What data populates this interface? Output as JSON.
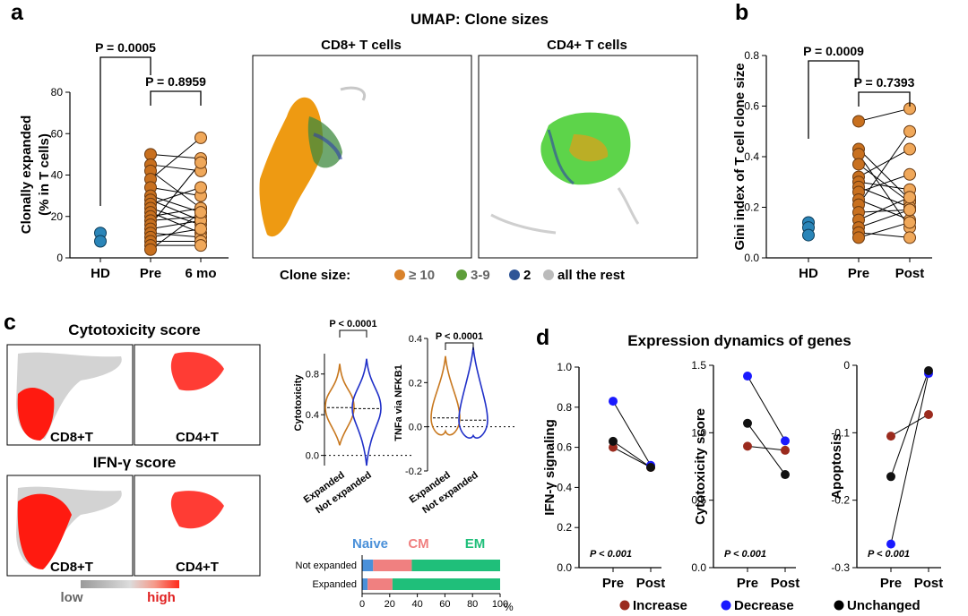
{
  "panels": {
    "a": "a",
    "b": "b",
    "c": "c",
    "d": "d"
  },
  "colors": {
    "expanded10": "#d9822b",
    "clone39": "#5e9e3a",
    "clone2": "#2f5597",
    "rest": "#bbbbbb",
    "hd": "#2a85b8",
    "increase": "#9b2b1e",
    "decrease": "#1a1aff",
    "unchanged": "#000000",
    "naive": "#4a90d9",
    "cm": "#f08080",
    "em": "#1fbf7a"
  },
  "chart_data": [
    {
      "id": "a",
      "type": "scatter",
      "ylabel": "Clonally expanded",
      "ylabel2": "(% in T cells)",
      "categories": [
        "HD",
        "Pre",
        "6 mo"
      ],
      "yticks": [
        "0",
        "20",
        "40",
        "60",
        "80"
      ],
      "ylim": [
        0,
        80
      ],
      "hd": [
        12,
        8
      ],
      "pairs": [
        [
          50,
          48
        ],
        [
          45,
          42
        ],
        [
          42,
          24
        ],
        [
          38,
          58
        ],
        [
          34,
          30
        ],
        [
          30,
          22
        ],
        [
          28,
          18
        ],
        [
          26,
          34
        ],
        [
          24,
          16
        ],
        [
          22,
          12
        ],
        [
          20,
          24
        ],
        [
          18,
          20
        ],
        [
          16,
          46
        ],
        [
          14,
          18
        ],
        [
          12,
          10
        ],
        [
          10,
          14
        ],
        [
          8,
          8
        ],
        [
          6,
          6
        ],
        [
          4,
          22
        ]
      ],
      "pvals": [
        "P = 0.0005",
        "P = 0.8959"
      ]
    },
    {
      "id": "umap",
      "type": "scatter",
      "title": "UMAP: Clone sizes",
      "subtitles": [
        "CD8+ T cells",
        "CD4+ T cells"
      ],
      "legend_title": "Clone size:",
      "legend": [
        "≥ 10",
        "3-9",
        "2",
        "all the rest"
      ]
    },
    {
      "id": "b",
      "type": "scatter",
      "ylabel": "Gini index of T cell clone size",
      "categories": [
        "HD",
        "Pre",
        "Post"
      ],
      "yticks": [
        "0.0",
        "0.2",
        "0.4",
        "0.6",
        "0.8"
      ],
      "ylim": [
        0,
        0.8
      ],
      "hd": [
        0.14,
        0.12,
        0.09
      ],
      "pairs": [
        [
          0.54,
          0.59
        ],
        [
          0.43,
          0.23
        ],
        [
          0.41,
          0.12
        ],
        [
          0.37,
          0.22
        ],
        [
          0.32,
          0.43
        ],
        [
          0.3,
          0.27
        ],
        [
          0.28,
          0.2
        ],
        [
          0.26,
          0.33
        ],
        [
          0.23,
          0.15
        ],
        [
          0.21,
          0.5
        ],
        [
          0.18,
          0.19
        ],
        [
          0.15,
          0.24
        ],
        [
          0.12,
          0.19
        ],
        [
          0.1,
          0.08
        ],
        [
          0.08,
          0.14
        ]
      ],
      "pvals": [
        "P = 0.0009",
        "P = 0.7393"
      ]
    },
    {
      "id": "c-maps",
      "type": "heatmap",
      "titles": [
        "Cytotoxicity score",
        "IFN-γ score"
      ],
      "labels": [
        "CD8+T",
        "CD4+T",
        "CD8+T",
        "CD4+T"
      ],
      "scale": [
        "low",
        "high"
      ]
    },
    {
      "id": "c-violin1",
      "type": "area",
      "ylabel": "Cytotoxicity",
      "yticks": [
        "0.0",
        "0.4",
        "0.8"
      ],
      "ylim": [
        -0.1,
        1.0
      ],
      "categories": [
        "Expanded",
        "Not expanded"
      ],
      "medians": [
        0.47,
        0.46
      ],
      "pval": "P < 0.0001"
    },
    {
      "id": "c-violin2",
      "type": "area",
      "ylabel": "TNFa via NFKB1",
      "yticks": [
        "-0.2",
        "0.0",
        "0.2",
        "0.4"
      ],
      "ylim": [
        -0.2,
        0.4
      ],
      "categories": [
        "Expanded",
        "Not expanded"
      ],
      "medians": [
        0.04,
        0.03
      ],
      "pval": "P < 0.0001"
    },
    {
      "id": "c-bar",
      "type": "bar",
      "categories": [
        "Not expanded",
        "Expanded"
      ],
      "series": [
        {
          "name": "Naive",
          "values": [
            8,
            4
          ]
        },
        {
          "name": "CM",
          "values": [
            28,
            18
          ]
        },
        {
          "name": "EM",
          "values": [
            64,
            78
          ]
        }
      ],
      "xticks": [
        "0",
        "20",
        "40",
        "60",
        "80",
        "100"
      ],
      "unit": "%"
    },
    {
      "id": "d",
      "type": "line",
      "title": "Expression dynamics of genes",
      "legend": [
        "Increase",
        "Decrease",
        "Unchanged"
      ],
      "panels": [
        {
          "ylabel": "IFN-γ signaling",
          "yticks": [
            "0.0",
            "0.2",
            "0.4",
            "0.6",
            "0.8",
            "1.0"
          ],
          "ylim": [
            0,
            1.0
          ],
          "categories": [
            "Pre",
            "Post"
          ],
          "increase": [
            0.6,
            0.5
          ],
          "decrease": [
            0.83,
            0.51
          ],
          "unchanged": [
            0.63,
            0.5
          ],
          "pval": "P < 0.001"
        },
        {
          "ylabel": "Cytotoxicity score",
          "yticks": [
            "0.0",
            "0.5",
            "1.0",
            "1.5"
          ],
          "ylim": [
            0,
            1.5
          ],
          "categories": [
            "Pre",
            "Post"
          ],
          "increase": [
            0.9,
            0.87
          ],
          "decrease": [
            1.42,
            0.94
          ],
          "unchanged": [
            1.07,
            0.69
          ],
          "pval": "P < 0.001"
        },
        {
          "ylabel": "Apoptosis",
          "yticks": [
            "0",
            "-0.1",
            "-0.2",
            "-0.3"
          ],
          "ylim": [
            -0.3,
            0
          ],
          "categories": [
            "Pre",
            "Post"
          ],
          "increase": [
            -0.105,
            -0.073
          ],
          "decrease": [
            -0.265,
            -0.012
          ],
          "unchanged": [
            -0.165,
            -0.008
          ],
          "pval": "P < 0.001"
        }
      ]
    }
  ]
}
